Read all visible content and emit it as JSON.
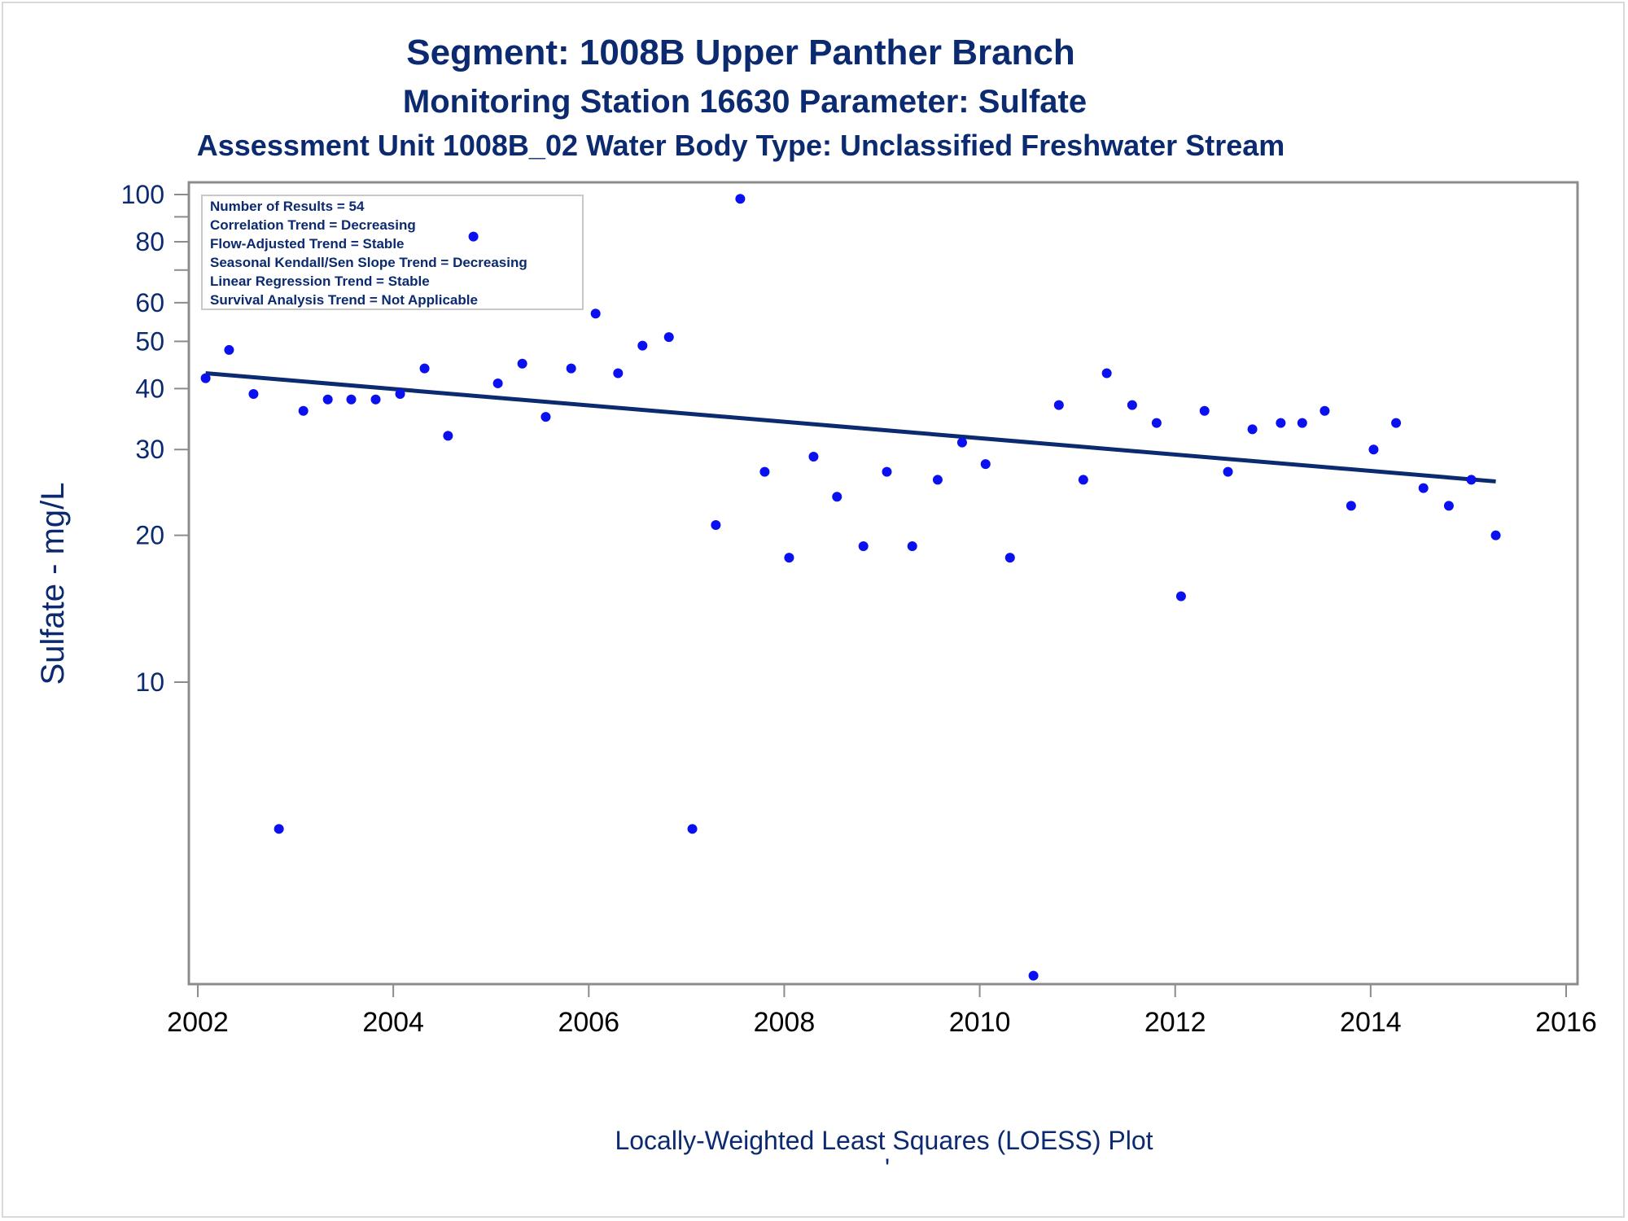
{
  "titles": {
    "line1": "Segment: 1008B  Upper Panther Branch",
    "line2": "Monitoring Station 16630 Parameter: Sulfate",
    "line3": "Assessment Unit 1008B_02   Water Body Type: Unclassified Freshwater Stream"
  },
  "stats_box": [
    "Number of Results = 54",
    "Correlation Trend = Decreasing",
    "Flow-Adjusted Trend = Stable",
    "Seasonal Kendall/Sen Slope Trend = Decreasing",
    "Linear Regression Trend = Stable",
    "Survival Analysis Trend = Not Applicable"
  ],
  "footnote": "Locally-Weighted Least Squares (LOESS) Plot",
  "footnote_mark": "'",
  "colors": {
    "text": "#0b2a6f",
    "points": "#0a10f0",
    "trend": "#0b2a6f",
    "axis": "#8c8c8c"
  },
  "chart_data": {
    "type": "scatter",
    "y_scale": "log",
    "xlabel": "",
    "ylabel": "Sulfate - mg/L",
    "xlim": [
      2002,
      2016
    ],
    "ylim": [
      1.95,
      105
    ],
    "x_ticks": [
      2002,
      2004,
      2006,
      2008,
      2010,
      2012,
      2014,
      2016
    ],
    "y_ticks": [
      100,
      80,
      60,
      50,
      40,
      30,
      20,
      10
    ],
    "y_minor_ticks": [
      90,
      70
    ],
    "grid": false,
    "legend": "none",
    "stats_box_position": "top-left",
    "points": [
      {
        "x": 2002.08,
        "y": 42
      },
      {
        "x": 2002.32,
        "y": 48
      },
      {
        "x": 2002.57,
        "y": 39
      },
      {
        "x": 2002.83,
        "y": 5
      },
      {
        "x": 2003.08,
        "y": 36
      },
      {
        "x": 2003.33,
        "y": 38
      },
      {
        "x": 2003.57,
        "y": 38
      },
      {
        "x": 2003.82,
        "y": 38
      },
      {
        "x": 2004.07,
        "y": 39
      },
      {
        "x": 2004.32,
        "y": 44
      },
      {
        "x": 2004.56,
        "y": 32
      },
      {
        "x": 2004.82,
        "y": 82
      },
      {
        "x": 2005.07,
        "y": 41
      },
      {
        "x": 2005.32,
        "y": 45
      },
      {
        "x": 2005.56,
        "y": 35
      },
      {
        "x": 2005.82,
        "y": 44
      },
      {
        "x": 2006.07,
        "y": 57
      },
      {
        "x": 2006.3,
        "y": 43
      },
      {
        "x": 2006.55,
        "y": 49
      },
      {
        "x": 2006.82,
        "y": 51
      },
      {
        "x": 2007.06,
        "y": 5
      },
      {
        "x": 2007.3,
        "y": 21
      },
      {
        "x": 2007.55,
        "y": 98
      },
      {
        "x": 2007.8,
        "y": 27
      },
      {
        "x": 2008.05,
        "y": 18
      },
      {
        "x": 2008.3,
        "y": 29
      },
      {
        "x": 2008.54,
        "y": 24
      },
      {
        "x": 2008.81,
        "y": 19
      },
      {
        "x": 2009.05,
        "y": 27
      },
      {
        "x": 2009.31,
        "y": 19
      },
      {
        "x": 2009.57,
        "y": 26
      },
      {
        "x": 2009.82,
        "y": 31
      },
      {
        "x": 2010.06,
        "y": 28
      },
      {
        "x": 2010.31,
        "y": 18
      },
      {
        "x": 2010.55,
        "y": 2.5
      },
      {
        "x": 2010.81,
        "y": 37
      },
      {
        "x": 2011.06,
        "y": 26
      },
      {
        "x": 2011.3,
        "y": 43
      },
      {
        "x": 2011.56,
        "y": 37
      },
      {
        "x": 2011.81,
        "y": 34
      },
      {
        "x": 2012.06,
        "y": 15
      },
      {
        "x": 2012.3,
        "y": 36
      },
      {
        "x": 2012.54,
        "y": 27
      },
      {
        "x": 2012.79,
        "y": 33
      },
      {
        "x": 2013.08,
        "y": 34
      },
      {
        "x": 2013.3,
        "y": 34
      },
      {
        "x": 2013.53,
        "y": 36
      },
      {
        "x": 2013.8,
        "y": 23
      },
      {
        "x": 2014.03,
        "y": 30
      },
      {
        "x": 2014.26,
        "y": 34
      },
      {
        "x": 2014.54,
        "y": 25
      },
      {
        "x": 2014.8,
        "y": 23
      },
      {
        "x": 2015.03,
        "y": 26
      },
      {
        "x": 2015.28,
        "y": 20
      }
    ],
    "trend_line": [
      {
        "x": 2002.08,
        "y": 43.0
      },
      {
        "x": 2015.28,
        "y": 25.8
      }
    ]
  }
}
